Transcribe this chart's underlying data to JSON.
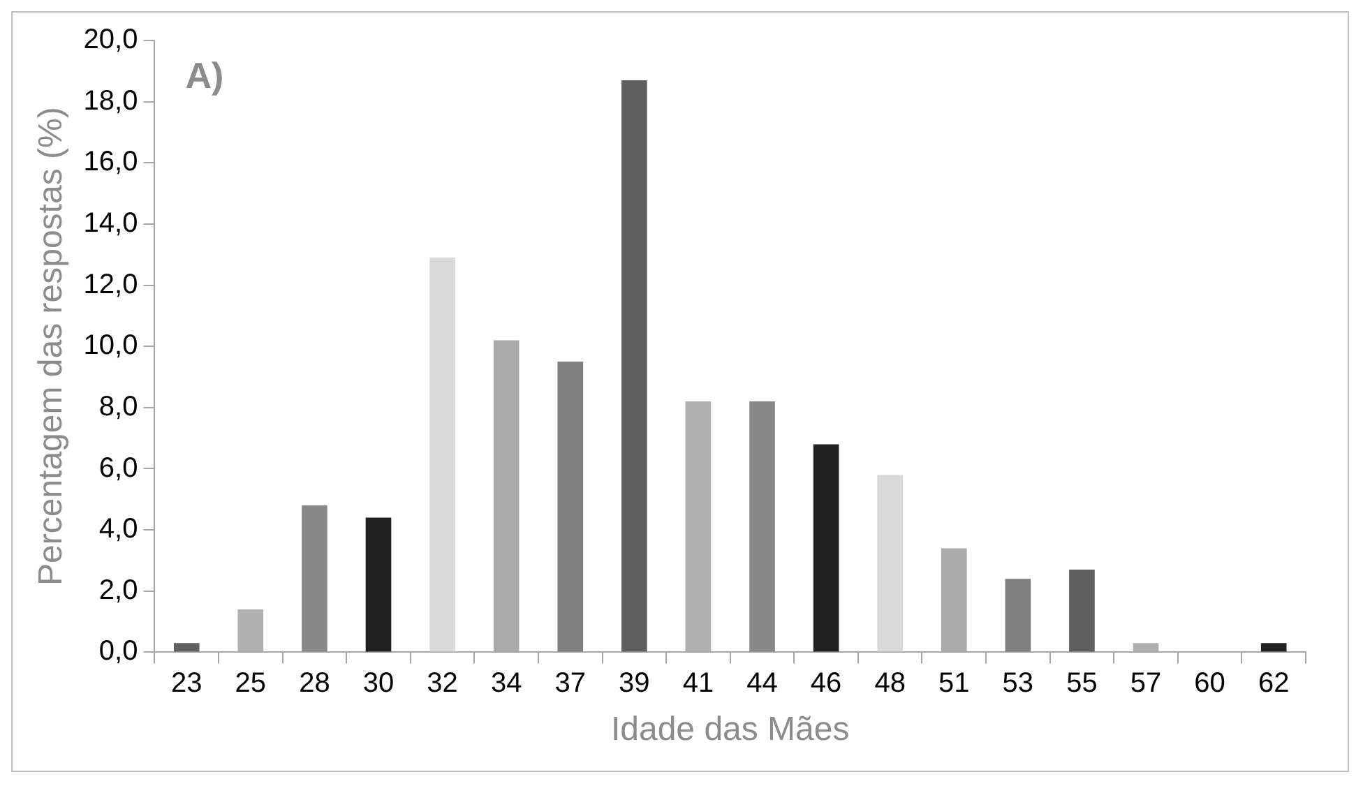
{
  "chart_data": {
    "type": "bar",
    "xlabel": "Idade das Mães",
    "ylabel": "Percentagem das respostas (%)",
    "annotations": [
      "A)"
    ],
    "categories": [
      "23",
      "25",
      "28",
      "30",
      "32",
      "34",
      "37",
      "39",
      "41",
      "44",
      "46",
      "48",
      "51",
      "53",
      "55",
      "57",
      "60",
      "62"
    ],
    "values": [
      0.3,
      1.4,
      4.8,
      4.4,
      12.9,
      10.2,
      9.5,
      18.7,
      8.2,
      8.2,
      6.8,
      5.8,
      3.4,
      2.4,
      2.7,
      0.3,
      0,
      0.3
    ],
    "colors": [
      "#606060",
      "#b0b0b0",
      "#888888",
      "#222222",
      "#d9d9d9",
      "#aaaaaa",
      "#7f7f7f",
      "#5f5f5f",
      "#b0b0b0",
      "#888888",
      "#222222",
      "#d9d9d9",
      "#aaaaaa",
      "#7f7f7f",
      "#5f5f5f",
      "#b0b0b0",
      "#888888",
      "#222222"
    ],
    "ylim": [
      0,
      20
    ],
    "yticks": [
      {
        "value": 0,
        "label": "0,0"
      },
      {
        "value": 2,
        "label": "2,0"
      },
      {
        "value": 4,
        "label": "4,0"
      },
      {
        "value": 6,
        "label": "6,0"
      },
      {
        "value": 8,
        "label": "8,0"
      },
      {
        "value": 10,
        "label": "10,0"
      },
      {
        "value": 12,
        "label": "12,0"
      },
      {
        "value": 14,
        "label": "14,0"
      },
      {
        "value": 16,
        "label": "16,0"
      },
      {
        "value": 18,
        "label": "18,0"
      },
      {
        "value": 20,
        "label": "20,0"
      }
    ],
    "grid": false,
    "legend": false
  }
}
